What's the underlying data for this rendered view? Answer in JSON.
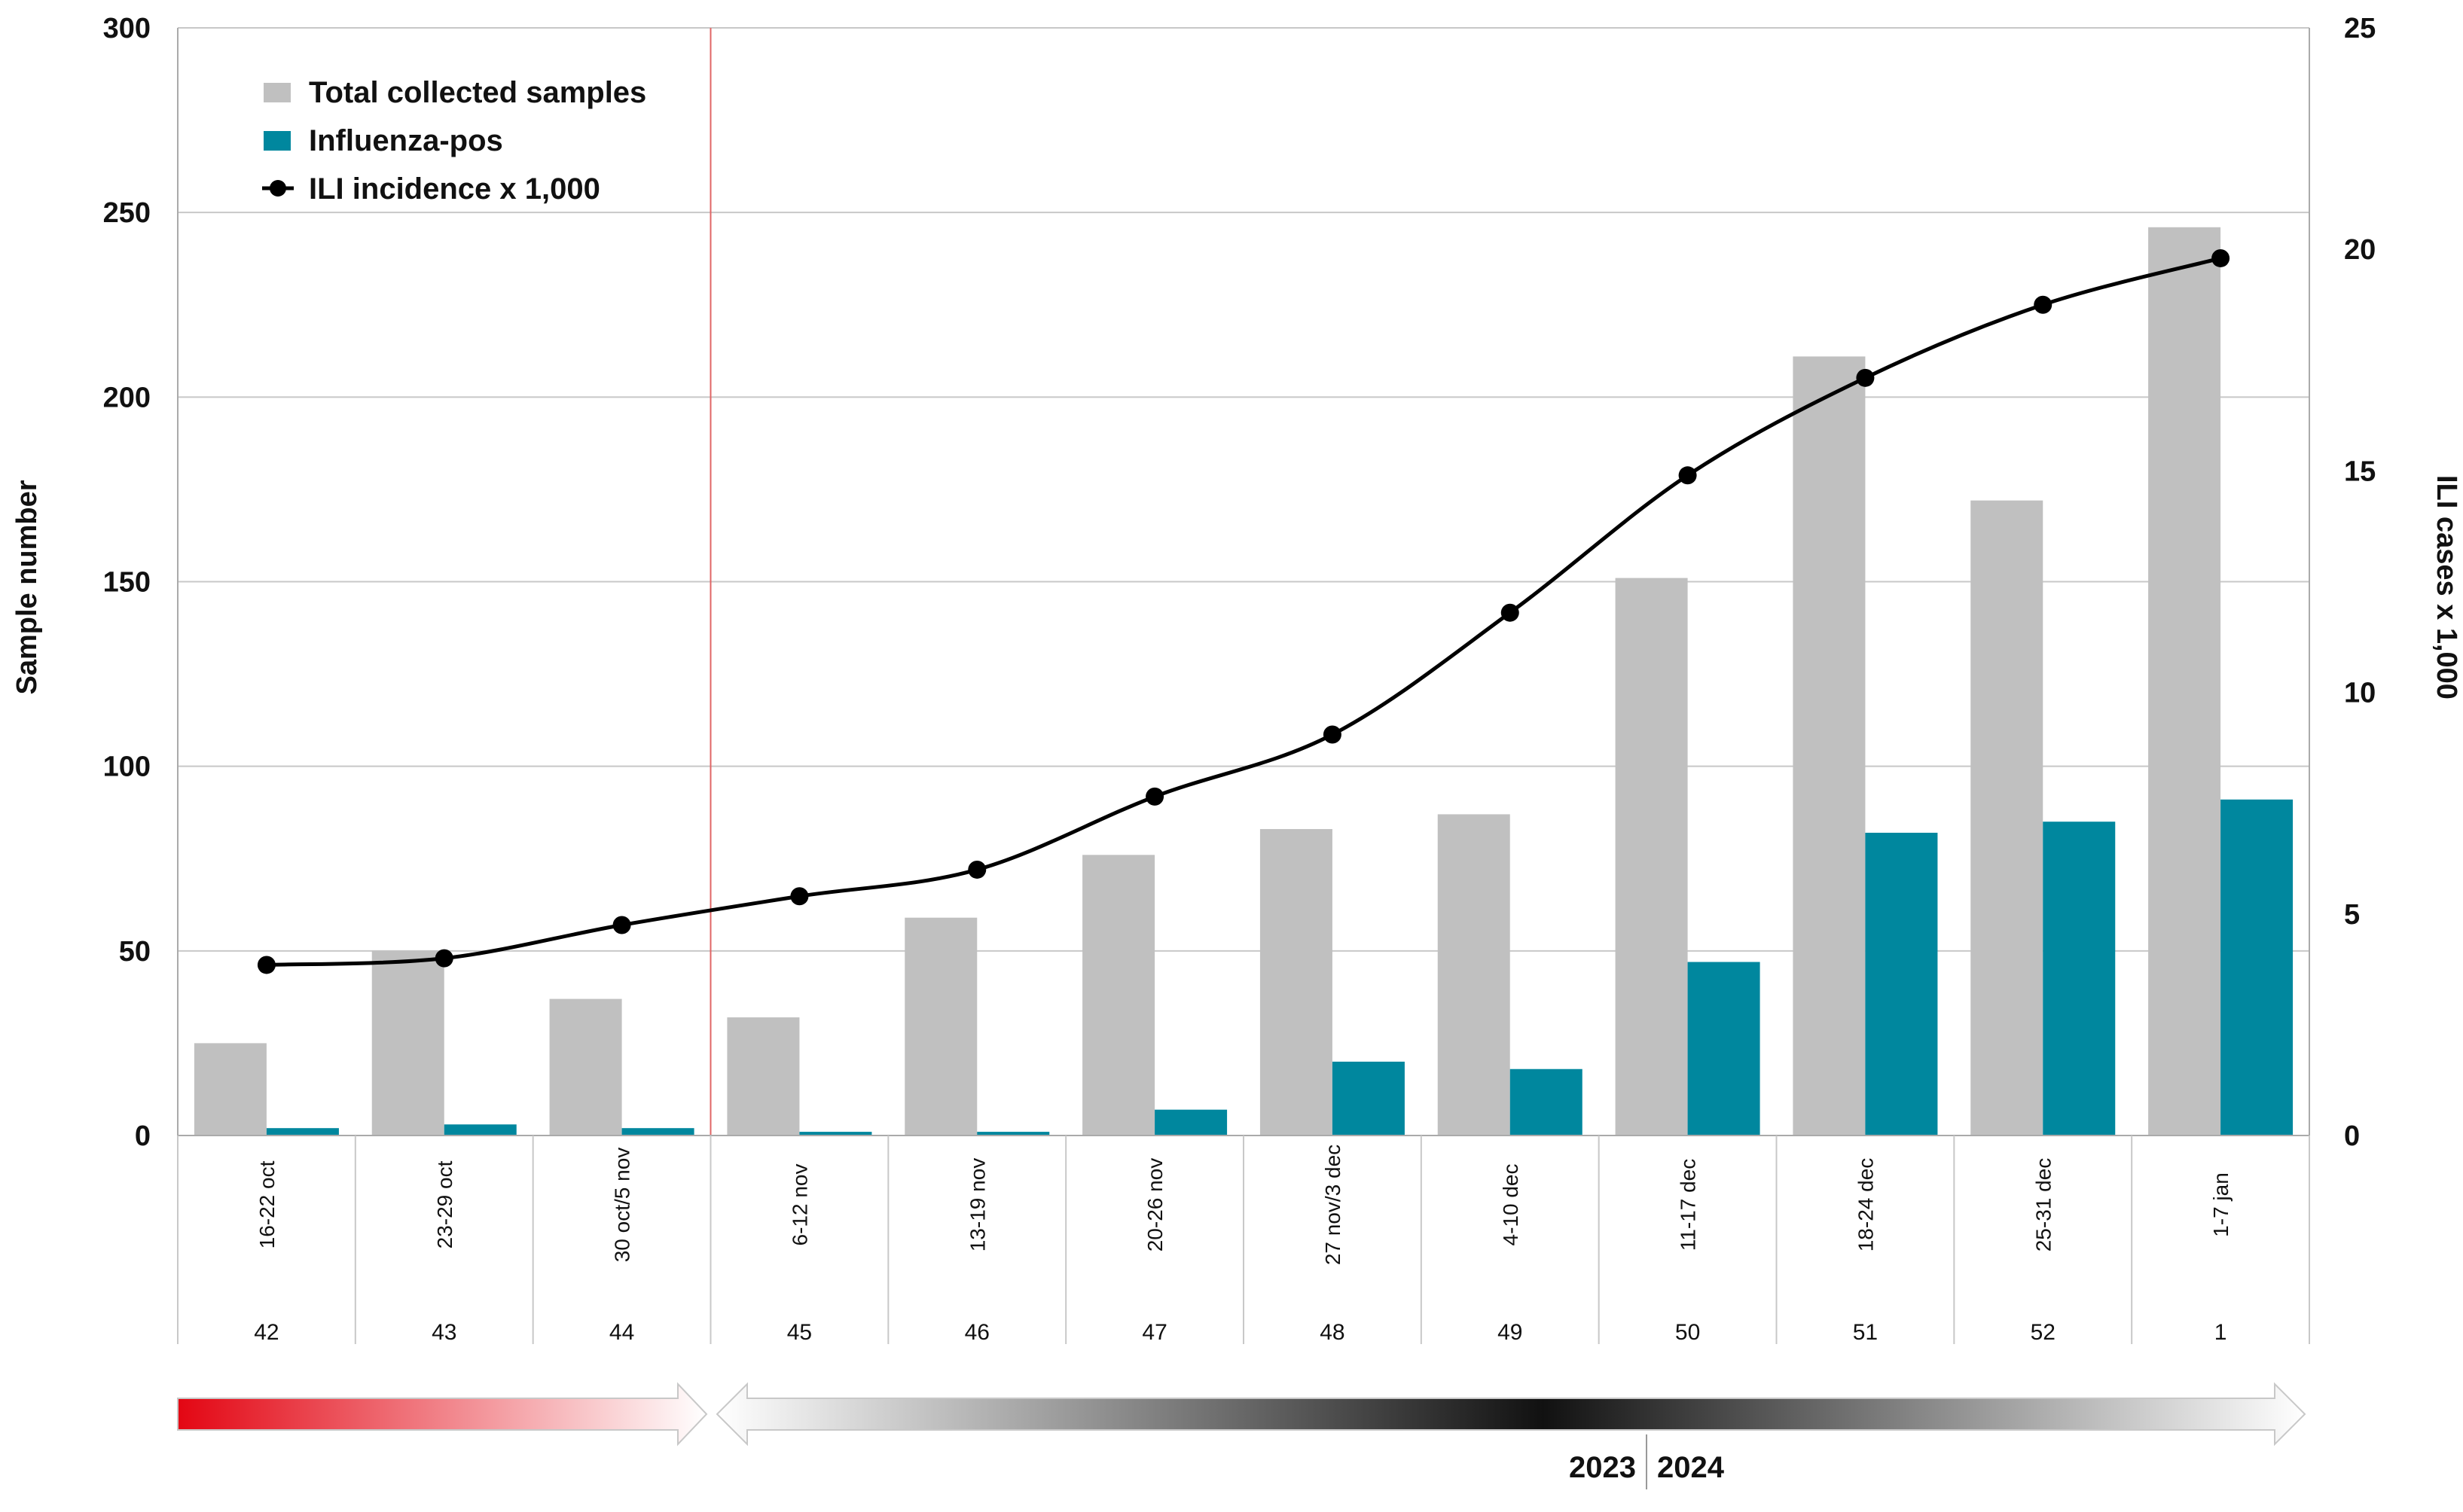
{
  "chart_data": {
    "type": "bar",
    "categories": [
      "16-22 oct",
      "23-29 oct",
      "30 oct/5 nov",
      "6-12 nov",
      "13-19 nov",
      "20-26 nov",
      "27 nov/3 dec",
      "4-10 dec",
      "11-17 dec",
      "18-24 dec",
      "25-31 dec",
      "1-7 jan"
    ],
    "weeks": [
      "42",
      "43",
      "44",
      "45",
      "46",
      "47",
      "48",
      "49",
      "50",
      "51",
      "52",
      "1"
    ],
    "series": [
      {
        "name": "Total collected samples",
        "type": "bar",
        "axis": "left",
        "color": "#c0c0c0",
        "values": [
          25,
          50,
          37,
          32,
          59,
          76,
          83,
          87,
          151,
          211,
          172,
          246
        ]
      },
      {
        "name": "Influenza-pos",
        "type": "bar",
        "axis": "left",
        "color": "#00879e",
        "values": [
          2,
          3,
          2,
          1,
          1,
          7,
          20,
          18,
          47,
          82,
          85,
          91
        ]
      },
      {
        "name": "ILI incidence x 1,000",
        "type": "line",
        "axis": "right",
        "color": "#000000",
        "values": [
          3.85,
          4.0,
          4.75,
          5.4,
          6.0,
          7.65,
          9.05,
          11.8,
          14.9,
          17.1,
          18.75,
          19.8
        ]
      }
    ],
    "ylabel": "Sample number",
    "y2label": "ILI cases x 1,000",
    "ylim": [
      0,
      300
    ],
    "y2lim": [
      0,
      25
    ],
    "yticks": [
      "0",
      "50",
      "100",
      "150",
      "200",
      "250",
      "300"
    ],
    "y2ticks": [
      "0",
      "5",
      "10",
      "15",
      "20",
      "25"
    ],
    "grid": true,
    "legend_position": "top-left",
    "years": [
      "2023",
      "2024"
    ],
    "colors": {
      "red_start": "#e30613",
      "vline": "#e06666"
    }
  }
}
